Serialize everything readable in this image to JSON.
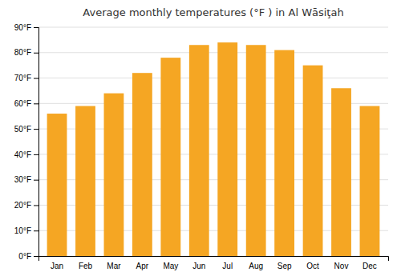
{
  "chart_data": {
    "type": "bar",
    "title": "Average monthly temperatures (°F ) in Al Wāsiţah",
    "categories": [
      "Jan",
      "Feb",
      "Mar",
      "Apr",
      "May",
      "Jun",
      "Jul",
      "Aug",
      "Sep",
      "Oct",
      "Nov",
      "Dec"
    ],
    "values": [
      56,
      59,
      64,
      72,
      78,
      83,
      84,
      83,
      81,
      75,
      66,
      59
    ],
    "color": "#F5A623",
    "ylim": [
      0,
      90
    ],
    "yticks": [
      {
        "value": 0,
        "label": "0°F"
      },
      {
        "value": 10,
        "label": "10°F"
      },
      {
        "value": 20,
        "label": "20°F"
      },
      {
        "value": 30,
        "label": "30°F"
      },
      {
        "value": 40,
        "label": "40°F"
      },
      {
        "value": 50,
        "label": "50°F"
      },
      {
        "value": 60,
        "label": "60°F"
      },
      {
        "value": 70,
        "label": "70°F"
      },
      {
        "value": 80,
        "label": "80°F"
      },
      {
        "value": 90,
        "label": "90°F"
      }
    ],
    "grid": true
  }
}
